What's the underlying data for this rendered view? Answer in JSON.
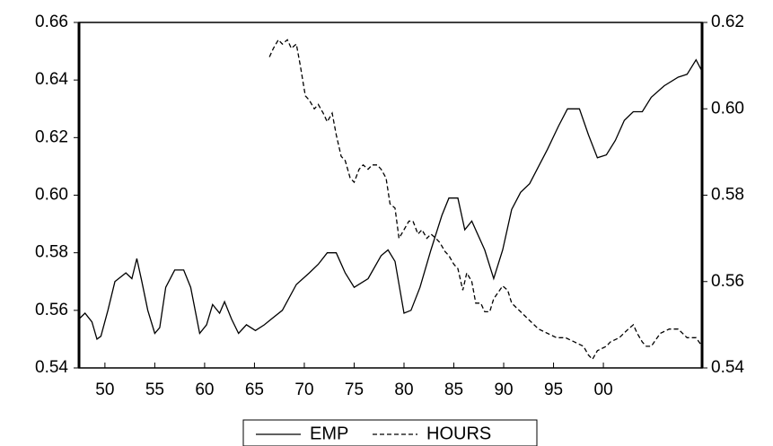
{
  "chart_data": {
    "type": "line",
    "xlim": [
      1947.4,
      2009.9
    ],
    "xticks": [
      {
        "value": 1950,
        "label": "50"
      },
      {
        "value": 1955,
        "label": "55"
      },
      {
        "value": 1960,
        "label": "60"
      },
      {
        "value": 1965,
        "label": "65"
      },
      {
        "value": 1970,
        "label": "70"
      },
      {
        "value": 1975,
        "label": "75"
      },
      {
        "value": 1980,
        "label": "80"
      },
      {
        "value": 1985,
        "label": "85"
      },
      {
        "value": 1990,
        "label": "90"
      },
      {
        "value": 1995,
        "label": "95"
      },
      {
        "value": 2000,
        "label": "00"
      }
    ],
    "ylim": [
      0.54,
      0.66
    ],
    "yticks": [
      0.54,
      0.56,
      0.58,
      {
        "value": 0.6,
        "label": "0.60"
      },
      0.62,
      0.64,
      0.66
    ],
    "y2lim": [
      0.54,
      0.62
    ],
    "y2ticks": [
      0.54,
      0.56,
      0.58,
      {
        "value": 0.6,
        "label": "0.60"
      },
      0.62
    ],
    "legend": "bottom",
    "series": [
      {
        "name": "EMP",
        "color": "#000000",
        "dash": false,
        "x": [
          1947.4,
          1948.0,
          1948.7,
          1949.2,
          1949.6,
          1950.3,
          1951.0,
          1952.1,
          1952.7,
          1953.2,
          1953.7,
          1954.3,
          1955.0,
          1955.5,
          1956.1,
          1957.0,
          1957.9,
          1958.6,
          1959.5,
          1960.2,
          1960.8,
          1961.5,
          1962.0,
          1962.7,
          1963.4,
          1964.2,
          1965.1,
          1966.0,
          1966.7,
          1967.8,
          1969.2,
          1970.5,
          1971.4,
          1972.3,
          1973.2,
          1974.1,
          1975.0,
          1976.4,
          1977.7,
          1978.4,
          1979.1,
          1980.0,
          1980.7,
          1981.6,
          1982.7,
          1983.8,
          1984.5,
          1985.4,
          1986.1,
          1986.8,
          1988.1,
          1989.0,
          1989.9,
          1990.8,
          1991.7,
          1992.6,
          1993.5,
          1994.4,
          1995.5,
          1996.4,
          1997.6,
          1998.5,
          1999.4,
          2000.3,
          2001.2,
          2002.1,
          2003.0,
          2003.9,
          2004.8,
          2006.1,
          2007.5,
          2008.4,
          2009.3,
          2009.9
        ],
        "values": [
          0.557,
          0.559,
          0.556,
          0.55,
          0.551,
          0.56,
          0.57,
          0.573,
          0.571,
          0.578,
          0.57,
          0.56,
          0.552,
          0.554,
          0.568,
          0.574,
          0.574,
          0.568,
          0.552,
          0.555,
          0.562,
          0.559,
          0.563,
          0.557,
          0.552,
          0.555,
          0.553,
          0.555,
          0.557,
          0.56,
          0.569,
          0.573,
          0.576,
          0.58,
          0.58,
          0.573,
          0.568,
          0.571,
          0.579,
          0.581,
          0.577,
          0.559,
          0.56,
          0.568,
          0.581,
          0.593,
          0.599,
          0.599,
          0.588,
          0.591,
          0.581,
          0.571,
          0.581,
          0.595,
          0.601,
          0.604,
          0.61,
          0.616,
          0.624,
          0.63,
          0.63,
          0.621,
          0.613,
          0.614,
          0.619,
          0.626,
          0.629,
          0.629,
          0.634,
          0.638,
          0.641,
          0.642,
          0.647,
          0.643
        ]
      },
      {
        "name": "HOURS",
        "color": "#000000",
        "dash": true,
        "axis": "y2",
        "x": [
          1966.5,
          1966.9,
          1967.4,
          1967.8,
          1968.3,
          1968.7,
          1969.2,
          1969.6,
          1970.1,
          1970.5,
          1971.0,
          1971.4,
          1971.9,
          1972.3,
          1972.8,
          1973.2,
          1973.7,
          1974.1,
          1974.6,
          1975.0,
          1975.5,
          1975.9,
          1976.4,
          1976.8,
          1977.3,
          1977.7,
          1978.2,
          1978.6,
          1979.1,
          1979.5,
          1980.0,
          1980.5,
          1980.9,
          1981.4,
          1981.8,
          1982.3,
          1982.7,
          1983.2,
          1983.6,
          1984.1,
          1984.5,
          1985.0,
          1985.4,
          1985.9,
          1986.3,
          1986.8,
          1987.2,
          1987.7,
          1988.1,
          1988.6,
          1989.0,
          1989.9,
          1990.4,
          1990.8,
          1991.7,
          1992.6,
          1993.5,
          1994.4,
          1995.3,
          1996.2,
          1997.1,
          1998.0,
          1998.5,
          1998.9,
          1999.4,
          2000.3,
          2000.7,
          2001.6,
          2002.5,
          2003.0,
          2003.4,
          2003.9,
          2004.3,
          2004.8,
          2005.7,
          2006.6,
          2007.5,
          2008.4,
          2009.3,
          2009.9
        ],
        "values": [
          0.612,
          0.614,
          0.616,
          0.615,
          0.616,
          0.614,
          0.615,
          0.61,
          0.603,
          0.602,
          0.6,
          0.601,
          0.599,
          0.597,
          0.599,
          0.594,
          0.589,
          0.588,
          0.584,
          0.583,
          0.586,
          0.587,
          0.586,
          0.587,
          0.587,
          0.586,
          0.584,
          0.578,
          0.577,
          0.57,
          0.572,
          0.574,
          0.574,
          0.571,
          0.572,
          0.57,
          0.571,
          0.57,
          0.569,
          0.567,
          0.566,
          0.564,
          0.563,
          0.558,
          0.562,
          0.56,
          0.555,
          0.555,
          0.553,
          0.553,
          0.556,
          0.559,
          0.558,
          0.555,
          0.553,
          0.551,
          0.549,
          0.548,
          0.547,
          0.547,
          0.546,
          0.545,
          0.543,
          0.542,
          0.544,
          0.545,
          0.546,
          0.547,
          0.549,
          0.55,
          0.548,
          0.546,
          0.545,
          0.545,
          0.548,
          0.549,
          0.549,
          0.547,
          0.547,
          0.545
        ]
      }
    ]
  }
}
